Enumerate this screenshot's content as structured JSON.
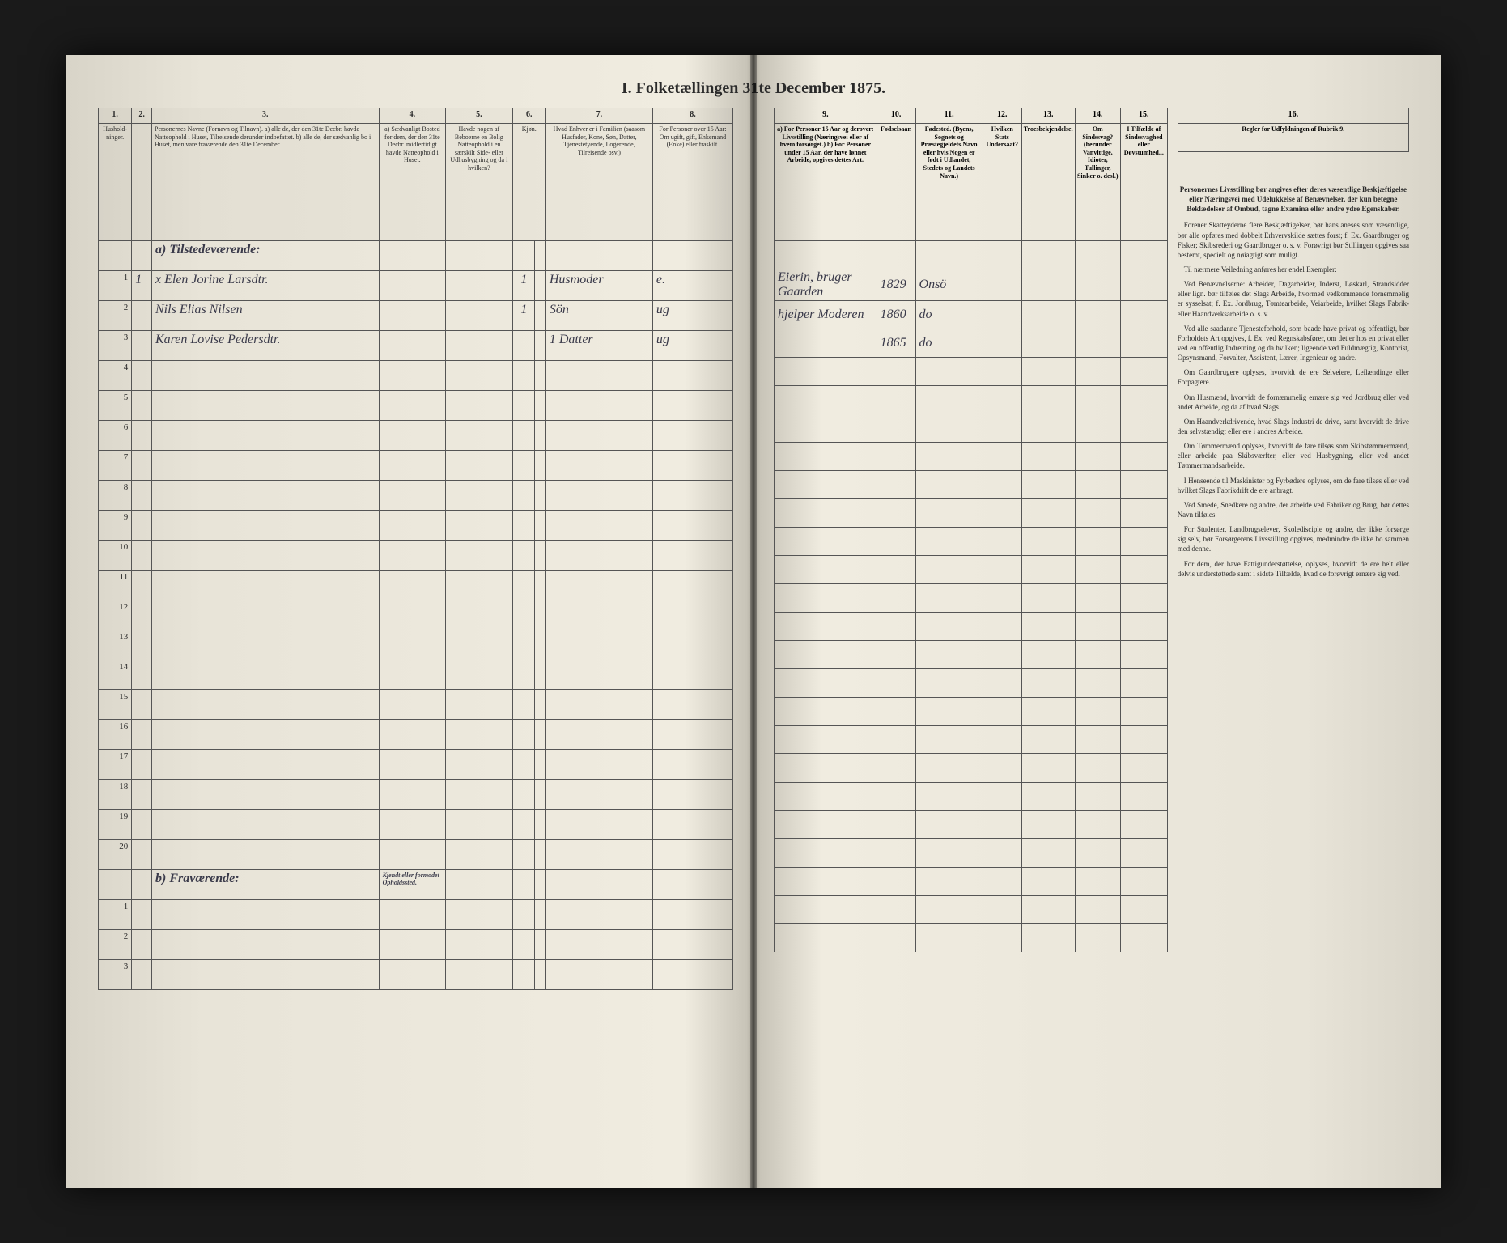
{
  "title": "I. Folketællingen 31te December 1875.",
  "left_columns": {
    "nums": [
      "1.",
      "2.",
      "3.",
      "4.",
      "5.",
      "6.",
      "7.",
      "8."
    ],
    "headers": [
      "Hushold-ninger.",
      "",
      "Personernes Navne (Fornavn og Tilnavn).\n\na) alle de, der den 31te Decbr. havde Natteophold i Huset, Tilreisende derunder indbefattet.\nb) alle de, der sædvanlig bo i Huset, men vare fraværende den 31te December.",
      "a) Sædvanligt Bosted for dem, der den 31te Decbr. midlertidigt havde Natteophold i Huset.",
      "Havde nogen af Beboerne en Bolig Natteophold i en særskilt Side- eller Udhusbygning og da i hvilken?",
      "Kjøn.",
      "Hvad Enhver er i Familien\n(saasom Husfader, Kone, Søn, Datter, Tjenestetyende, Logerende, Tilreisende osv.)",
      "For Personer over 15 Aar: Om ugift, gift, Enkemand (Enke) eller fraskilt."
    ]
  },
  "right_columns": {
    "nums": [
      "9.",
      "10.",
      "11.",
      "12.",
      "13.",
      "14.",
      "15.",
      "16."
    ],
    "headers": [
      "a) For Personer 15 Aar og derover: Livsstilling (Næringsvei eller af hvem forsørget.)\nb) For Personer under 15 Aar, der have lønnet Arbeide, opgives dettes Art.",
      "Fødselsaar.",
      "Fødested.\n(Byens, Sognets og Præstegjeldets Navn eller hvis Nogen er født i Udlandet, Stedets og Landets Navn.)",
      "Hvilken Stats Undersaat?",
      "Troesbekjendelse.",
      "Om Sindssvag? (herunder Vanvittige, Idioter, Tullinger, Sinker o. desl.)",
      "I Tilfælde af Sindssvaghed eller Døvstumhed...",
      "Regler for Udfyldningen af Rubrik 9."
    ]
  },
  "section_a": "a) Tilstedeværende:",
  "section_b": "b) Fraværende:",
  "section_b_col4": "Kjendt eller formodet Opholdssted.",
  "rows_a": [
    {
      "n": "1",
      "hh": "1",
      "c2": "x",
      "name": "Elen Jorine Larsdtr.",
      "c4": "",
      "c5": "",
      "c6": "1",
      "c7": "Husmoder",
      "c8": "e.",
      "c9": "Eierin, bruger Gaarden",
      "c10": "1829",
      "c11": "Onsö",
      "c12": "",
      "c13": "",
      "c14": "",
      "c15": ""
    },
    {
      "n": "2",
      "hh": "",
      "c2": "",
      "name": "Nils Elias Nilsen",
      "c4": "",
      "c5": "",
      "c6": "1",
      "c7": "Sön",
      "c8": "ug",
      "c9": "hjelper Moderen",
      "c10": "1860",
      "c11": "do",
      "c12": "",
      "c13": "",
      "c14": "",
      "c15": ""
    },
    {
      "n": "3",
      "hh": "",
      "c2": "",
      "name": "Karen Lovise Pedersdtr.",
      "c4": "",
      "c5": "",
      "c6": "",
      "c7": "1 Datter",
      "c8": "ug",
      "c9": "",
      "c10": "1865",
      "c11": "do",
      "c12": "",
      "c13": "",
      "c14": "",
      "c15": ""
    }
  ],
  "blank_a_rows": 17,
  "blank_b_rows": 3,
  "instructions": {
    "heading": "Personernes Livsstilling bør angives efter deres væsentlige Beskjæftigelse eller Næringsvei med Udelukkelse af Benævnelser, der kun betegne Beklædelser af Ombud, tagne Examina eller andre ydre Egenskaber.",
    "paragraphs": [
      "Forener Skatteyderne flere Beskjæftigelser, bør hans aneses som væsentlige, bør alle opføres med dobbelt Erhvervskilde sættes forst; f. Ex. Gaardbruger og Fisker; Skibsrederi og Gaardbruger o. s. v. Forøvrigt bør Stillingen opgives saa bestemt, specielt og nøiagtigt som muligt.",
      "Til nærmere Veiledning anføres her endel Exempler:",
      "Ved Benævnelserne: Arbeider, Dagarbeider, Inderst, Løskarl, Strandsidder eller lign. bør tilføies det Slags Arbeide, hvormed vedkommende fornemmelig er sysselsat; f. Ex. Jordbrug, Tømtearbeide, Veiarbeide, hvilket Slags Fabrik- eller Haandverksarbeide o. s. v.",
      "Ved alle saadanne Tjenesteforhold, som baade have privat og offentligt, bør Forholdets Art opgives, f. Ex. ved Regnskabsfører, om det er hos en privat eller ved en offentlig Indretning og da hvilken; ligeende ved Fuldmægtig, Kontorist, Opsynsmand, Forvalter, Assistent, Lærer, Ingenieur og andre.",
      "Om Gaardbrugere oplyses, hvorvidt de ere Selveiere, Leilændinge eller Forpagtere.",
      "Om Husmænd, hvorvidt de fornæmmelig ernære sig ved Jordbrug eller ved andet Arbeide, og da af hvad Slags.",
      "Om Haandverkdrivende, hvad Slags Industri de drive, samt hvorvidt de drive den selvstændigt eller ere i andres Arbeide.",
      "Om Tømmermænd oplyses, hvorvidt de fare tilsøs som Skibstømmermænd, eller arbeide paa Skibsværfter, eller ved Husbygning, eller ved andet Tømmermandsarbeide.",
      "I Henseende til Maskinister og Fyrbødere oplyses, om de fare tilsøs eller ved hvilket Slags Fabrikdrift de ere anbragt.",
      "Ved Smede, Snedkere og andre, der arbeide ved Fabriker og Brug, bør dettes Navn tilføies.",
      "For Studenter, Landbrugselever, Skoledisciple og andre, der ikke forsørge sig selv, bør Forsørgerens Livsstilling opgives, medmindre de ikke bo sammen med denne.",
      "For dem, der have Fattigunderstøttelse, oplyses, hvorvidt de ere helt eller delvis understøttede samt i sidste Tilfælde, hvad de forøvrigt ernære sig ved."
    ]
  },
  "style": {
    "paper_bg": "#e8e4d8",
    "border_color": "#555555",
    "text_color": "#2a2a2a",
    "script_color": "#3a3a4a",
    "header_font_size": 8,
    "data_font_size": 16,
    "title_font_size": 20
  }
}
